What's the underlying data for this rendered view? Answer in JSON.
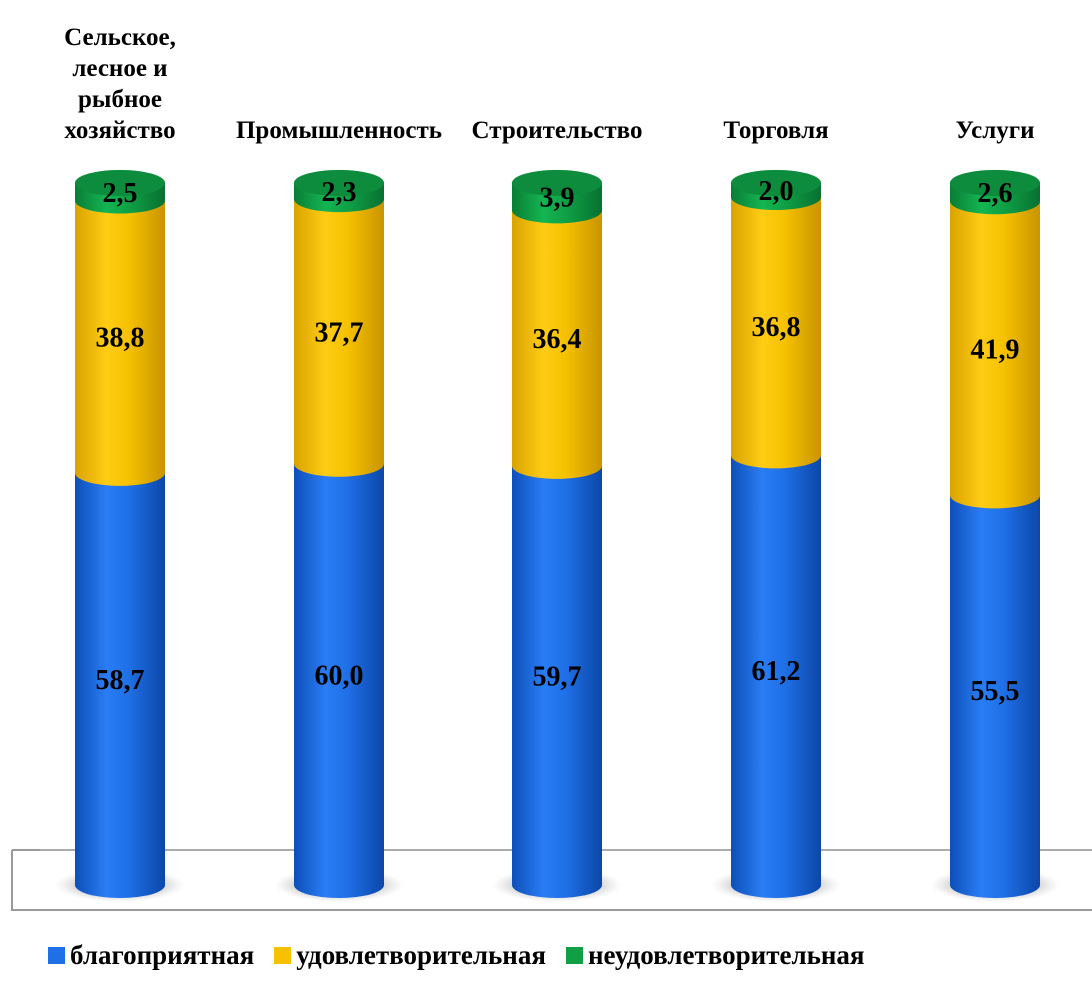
{
  "chart_data": {
    "type": "bar",
    "stacked": true,
    "style": "3d-cylinder",
    "categories": [
      [
        "Сельское,",
        "лесное и",
        "рыбное",
        "хозяйство"
      ],
      [
        "Промышленность"
      ],
      [
        "Строительство"
      ],
      [
        "Торговля"
      ],
      [
        "Услуги"
      ]
    ],
    "series": [
      {
        "name": "благоприятная",
        "color": "#1f6fe6",
        "values": [
          58.7,
          60.0,
          59.7,
          61.2,
          55.5
        ]
      },
      {
        "name": "удовлетворительная",
        "color": "#f5c100",
        "values": [
          38.8,
          37.7,
          36.4,
          36.8,
          41.9
        ]
      },
      {
        "name": "неудовлетворительная",
        "color": "#0fa046",
        "values": [
          2.5,
          2.3,
          3.9,
          2.0,
          2.6
        ]
      }
    ],
    "value_labels": [
      [
        "58,7",
        "60,0",
        "59,7",
        "61,2",
        "55,5"
      ],
      [
        "38,8",
        "37,7",
        "36,4",
        "36,8",
        "41,9"
      ],
      [
        "2,5",
        "2,3",
        "3,9",
        "2,0",
        "2,6"
      ]
    ],
    "ylim": [
      0,
      100
    ],
    "legend_position": "bottom",
    "grid": false
  },
  "legend": {
    "items": [
      {
        "label": "благоприятная",
        "color": "#1f6fe6"
      },
      {
        "label": "удовлетворительная",
        "color": "#f5c100"
      },
      {
        "label": "неудовлетворительная",
        "color": "#0fa046"
      }
    ]
  }
}
